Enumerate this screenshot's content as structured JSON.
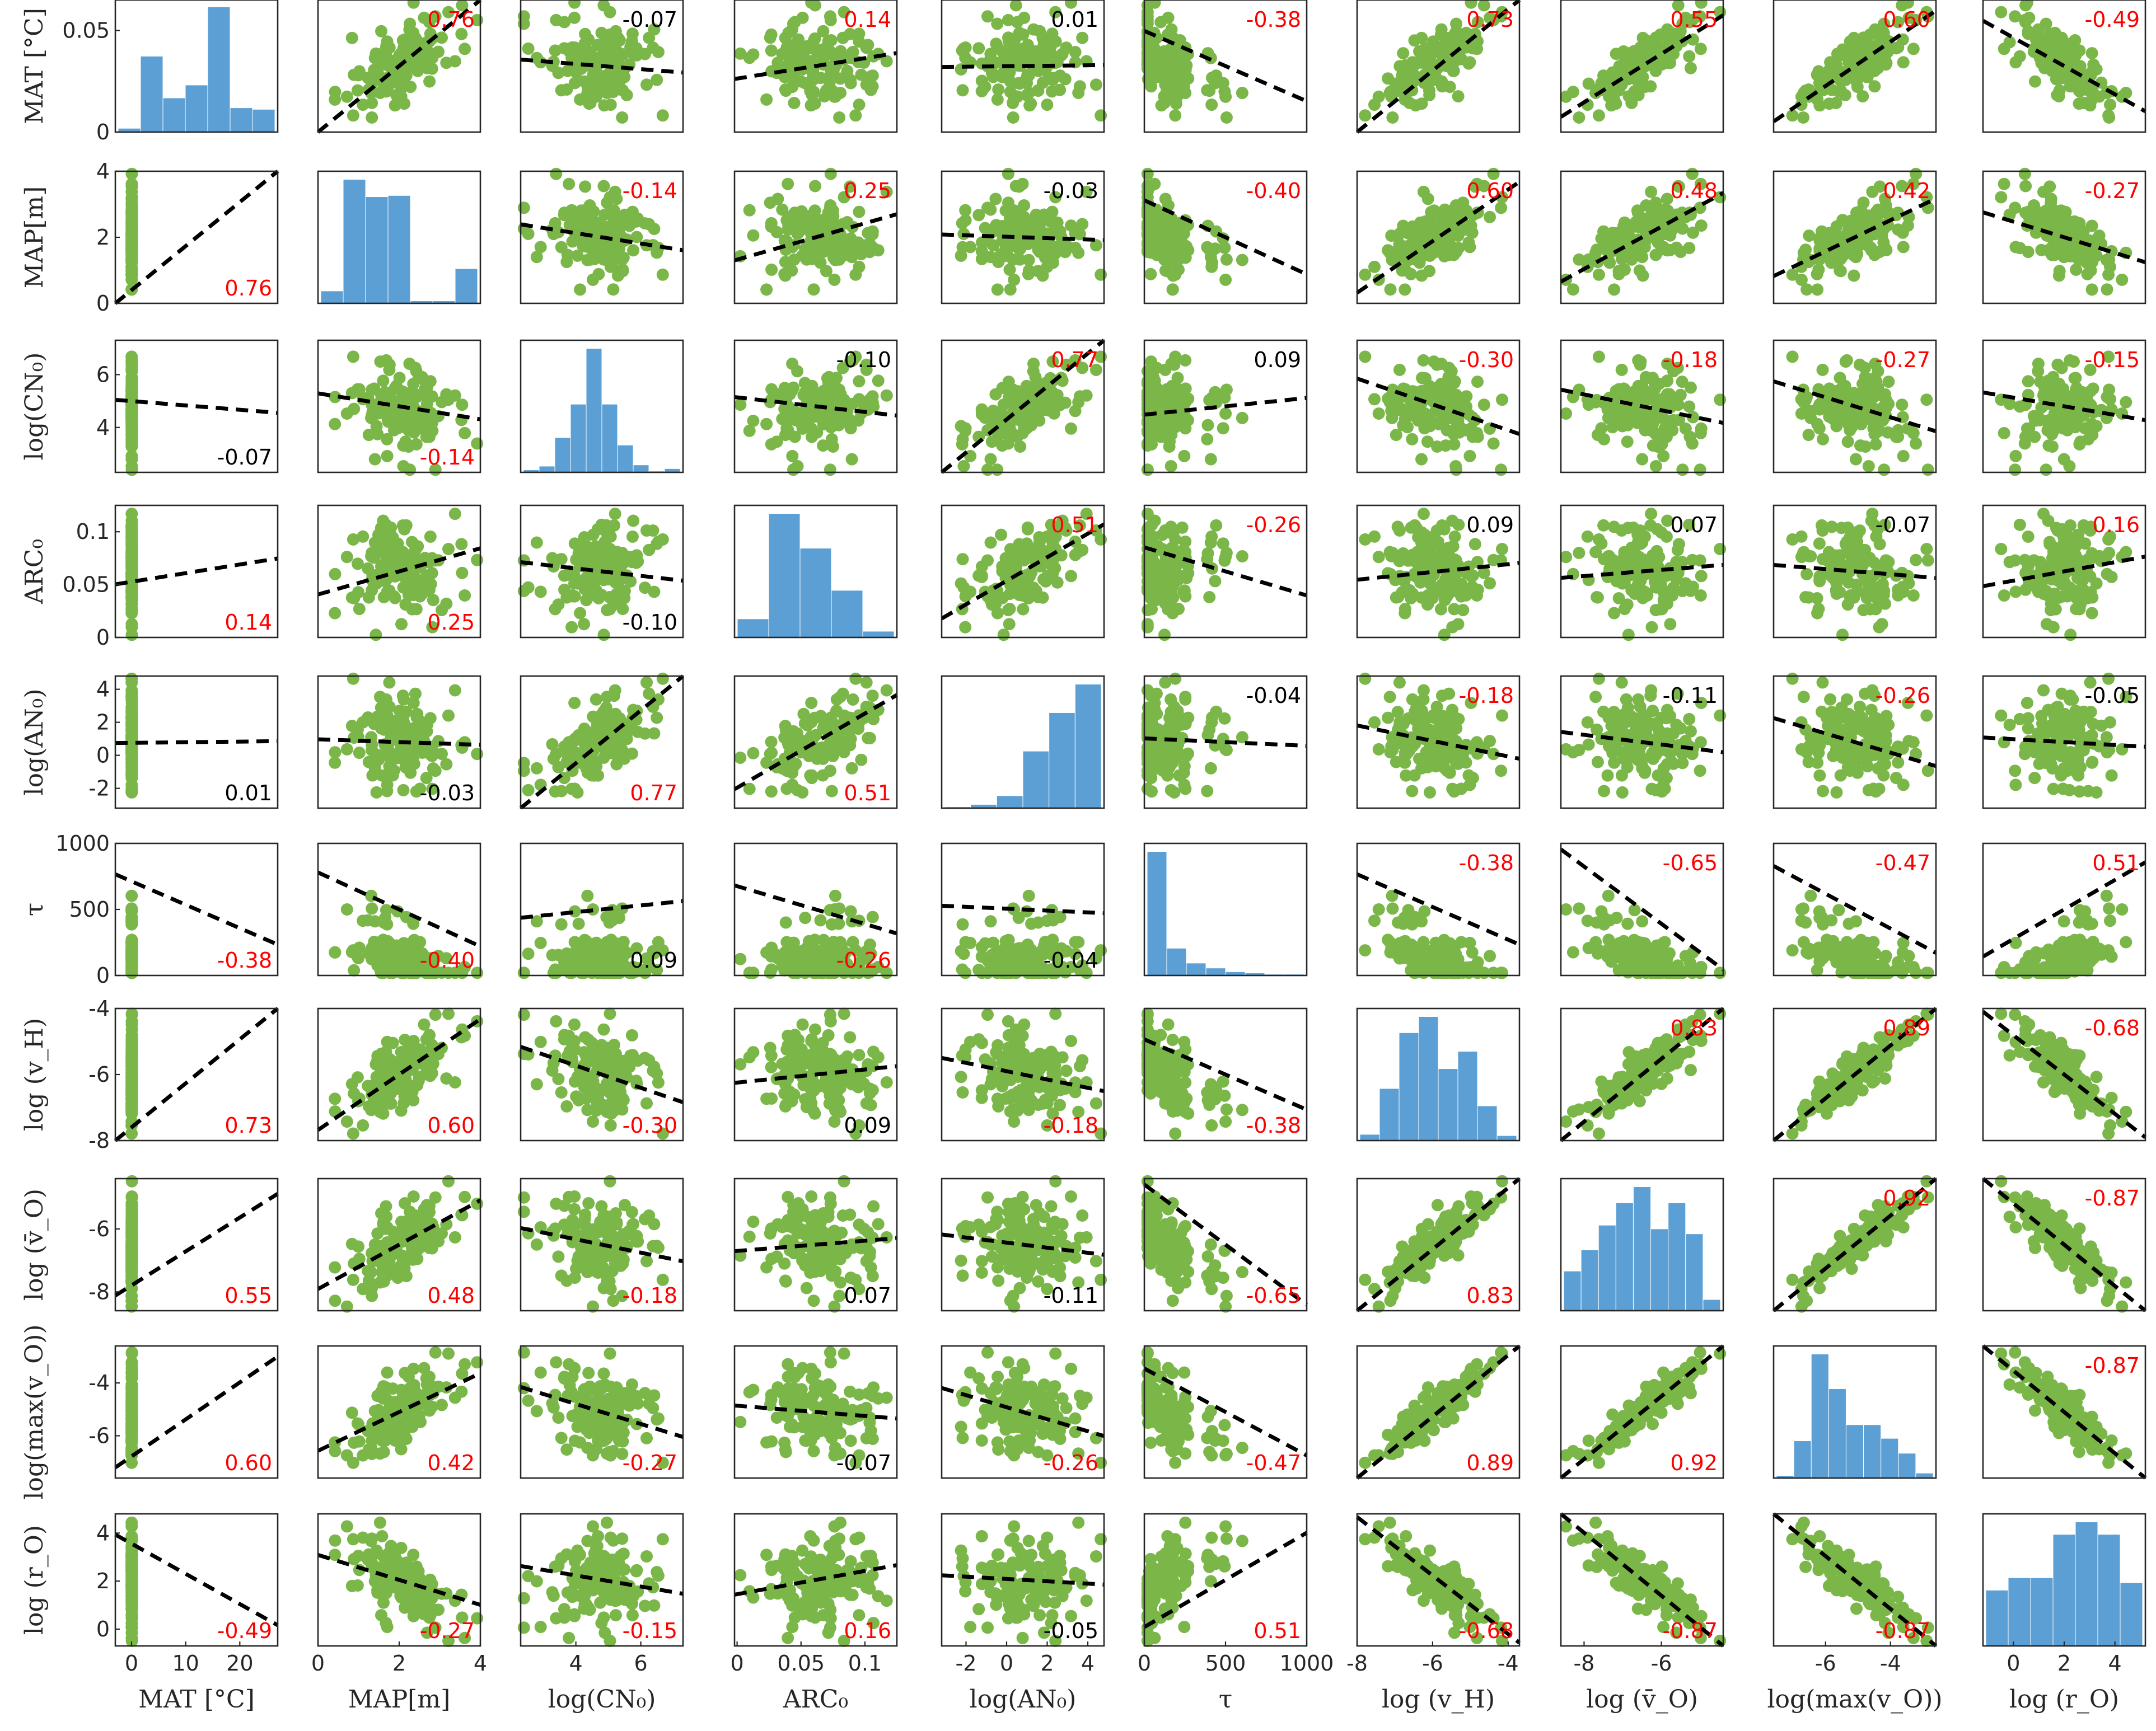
{
  "chart_data": {
    "type": "scatter-matrix",
    "variables": [
      {
        "label": "MAT [°C]",
        "ylabel": "MAT [°C]",
        "xrange": [
          -3,
          27
        ],
        "yrange": [
          0,
          0.065
        ],
        "xticks": [
          "0",
          "10",
          "20"
        ],
        "xtick_vals": [
          0,
          10,
          20
        ],
        "yticks": [
          "0",
          "0.05"
        ],
        "ytick_vals": [
          0,
          0.05
        ]
      },
      {
        "label": "MAP[m]",
        "ylabel": "MAP[m]",
        "xrange": [
          0,
          4
        ],
        "yrange": [
          0,
          4
        ],
        "xticks": [
          "0",
          "2",
          "4"
        ],
        "xtick_vals": [
          0,
          2,
          4
        ],
        "yticks": [
          "0",
          "2",
          "4"
        ],
        "ytick_vals": [
          0,
          2,
          4
        ]
      },
      {
        "label": "log(CN₀)",
        "ylabel": "log(CN₀)",
        "xrange": [
          2.3,
          7.3
        ],
        "yrange": [
          2.3,
          7.3
        ],
        "xticks": [
          "4",
          "6"
        ],
        "xtick_vals": [
          4,
          6
        ],
        "yticks": [
          "4",
          "6"
        ],
        "ytick_vals": [
          4,
          6
        ]
      },
      {
        "label": "ARC₀",
        "ylabel": "ARC₀",
        "xrange": [
          -0.002,
          0.125
        ],
        "yrange": [
          0,
          0.125
        ],
        "xticks": [
          "0",
          "0.05",
          "0.1"
        ],
        "xtick_vals": [
          0,
          0.05,
          0.1
        ],
        "yticks": [
          "0",
          "0.05",
          "0.1"
        ],
        "ytick_vals": [
          0,
          0.05,
          0.1
        ]
      },
      {
        "label": "log(AN₀)",
        "ylabel": "log(AN₀)",
        "xrange": [
          -3.2,
          4.8
        ],
        "yrange": [
          -3.2,
          4.8
        ],
        "xticks": [
          "-2",
          "0",
          "2",
          "4"
        ],
        "xtick_vals": [
          -2,
          0,
          2,
          4
        ],
        "yticks": [
          "-2",
          "0",
          "2",
          "4"
        ],
        "ytick_vals": [
          -2,
          0,
          2,
          4
        ]
      },
      {
        "label": "τ",
        "ylabel": "τ",
        "xrange": [
          0,
          1000
        ],
        "yrange": [
          0,
          1000
        ],
        "xticks": [
          "0",
          "500",
          "1000"
        ],
        "xtick_vals": [
          0,
          500,
          1000
        ],
        "yticks": [
          "0",
          "500",
          "1000"
        ],
        "ytick_vals": [
          0,
          500,
          1000
        ]
      },
      {
        "label": "log (v_H)",
        "ylabel": "log (v_H)",
        "xrange": [
          -8,
          -3.7
        ],
        "yrange": [
          -8,
          -4
        ],
        "xticks": [
          "-8",
          "-6",
          "-4"
        ],
        "xtick_vals": [
          -8,
          -6,
          -4
        ],
        "yticks": [
          "-8",
          "-6",
          "-4"
        ],
        "ytick_vals": [
          -8,
          -6,
          -4
        ]
      },
      {
        "label": "log (v̄_O)",
        "ylabel": "log (v̄_O)",
        "xrange": [
          -8.6,
          -4.4
        ],
        "yrange": [
          -8.6,
          -4.4
        ],
        "xticks": [
          "-8",
          "-6"
        ],
        "xtick_vals": [
          -8,
          -6
        ],
        "yticks": [
          "-8",
          "-6"
        ],
        "ytick_vals": [
          -8,
          -6
        ]
      },
      {
        "label": "log(max(v_O))",
        "ylabel": "log(max(v_O))",
        "xrange": [
          -7.6,
          -2.6
        ],
        "yrange": [
          -7.6,
          -2.6
        ],
        "xticks": [
          "-6",
          "-4"
        ],
        "xtick_vals": [
          -6,
          -4
        ],
        "yticks": [
          "-6",
          "-4"
        ],
        "ytick_vals": [
          -6,
          -4
        ]
      },
      {
        "label": "log (r_O)",
        "ylabel": "log (r_O)",
        "xrange": [
          -1.2,
          5.2
        ],
        "yrange": [
          -0.7,
          4.8
        ],
        "xticks": [
          "0",
          "2",
          "4"
        ],
        "xtick_vals": [
          0,
          2,
          4
        ],
        "yticks": [
          "0",
          "2",
          "4"
        ],
        "ytick_vals": [
          0,
          2,
          4
        ]
      }
    ],
    "correlations": [
      [
        null,
        0.76,
        -0.07,
        0.14,
        0.01,
        -0.38,
        0.73,
        0.55,
        0.6,
        -0.49
      ],
      [
        0.76,
        null,
        -0.14,
        0.25,
        -0.03,
        -0.4,
        0.6,
        0.48,
        0.42,
        -0.27
      ],
      [
        -0.07,
        -0.14,
        null,
        -0.1,
        0.77,
        0.09,
        -0.3,
        -0.18,
        -0.27,
        -0.15
      ],
      [
        0.14,
        0.25,
        -0.1,
        null,
        0.51,
        -0.26,
        0.09,
        0.07,
        -0.07,
        0.16
      ],
      [
        0.01,
        -0.03,
        0.77,
        0.51,
        null,
        -0.04,
        -0.18,
        -0.11,
        -0.26,
        -0.05
      ],
      [
        -0.38,
        -0.4,
        0.09,
        -0.26,
        -0.04,
        null,
        -0.38,
        -0.65,
        -0.47,
        0.51
      ],
      [
        0.73,
        0.6,
        -0.3,
        0.09,
        -0.18,
        -0.38,
        null,
        0.83,
        0.89,
        -0.68
      ],
      [
        0.55,
        0.48,
        -0.18,
        0.07,
        -0.11,
        -0.65,
        0.83,
        null,
        0.92,
        -0.87
      ],
      [
        0.6,
        0.42,
        -0.27,
        -0.07,
        -0.26,
        -0.47,
        0.89,
        0.92,
        null,
        -0.87
      ],
      [
        -0.49,
        -0.27,
        -0.15,
        0.16,
        -0.05,
        0.51,
        -0.68,
        -0.87,
        -0.87,
        null
      ]
    ],
    "corr_label_text": [
      [
        null,
        "0.76",
        "-0.07",
        "0.14",
        "0.01",
        "-0.38",
        "0.73",
        "0.55",
        "0.60",
        "-0.49"
      ],
      [
        "0.76",
        null,
        "-0.14",
        "0.25",
        "-0.03",
        "-0.40",
        "0.60",
        "0.48",
        "0.42",
        "-0.27"
      ],
      [
        "-0.07",
        "-0.14",
        null,
        "-0.10",
        "0.77",
        "0.09",
        "-0.30",
        "-0.18",
        "-0.27",
        "-0.15"
      ],
      [
        "0.14",
        "0.25",
        "-0.10",
        null,
        "0.51",
        "-0.26",
        "0.09",
        "0.07",
        "-0.07",
        "0.16"
      ],
      [
        "0.01",
        "-0.03",
        "0.77",
        "0.51",
        null,
        "-0.04",
        "-0.18",
        "-0.11",
        "-0.26",
        "-0.05"
      ],
      [
        "-0.38",
        "-0.40",
        "0.09",
        "-0.26",
        "-0.04",
        null,
        "-0.38",
        "-0.65",
        "-0.47",
        "0.51"
      ],
      [
        "0.73",
        "0.60",
        "-0.30",
        "0.09",
        "-0.18",
        "-0.38",
        null,
        "0.83",
        "0.89",
        "-0.68"
      ],
      [
        "0.55",
        "0.48",
        "-0.18",
        "0.07",
        "-0.11",
        "-0.65",
        "0.83",
        null,
        "0.92",
        "-0.87"
      ],
      [
        "0.60",
        "0.42",
        "-0.27",
        "-0.07",
        "-0.26",
        "-0.47",
        "0.89",
        "0.92",
        null,
        "-0.87"
      ],
      [
        "-0.49",
        "-0.27",
        "-0.15",
        "0.16",
        "-0.05",
        "0.51",
        "-0.68",
        "-0.87",
        "-0.87",
        null
      ]
    ],
    "histograms": [
      [
        0.05,
        1.0,
        0.45,
        0.62,
        1.65,
        0.32,
        0.3
      ],
      [
        0.1,
        1.0,
        0.86,
        0.87,
        0.02,
        0.02,
        0.28
      ],
      [
        0.02,
        0.05,
        0.28,
        0.55,
        1.0,
        0.55,
        0.22,
        0.06,
        0.01,
        0.03
      ],
      [
        0.15,
        1.0,
        0.72,
        0.38,
        0.05
      ],
      [
        0.01,
        0.03,
        0.1,
        0.46,
        0.77,
        1.0
      ],
      [
        1.0,
        0.22,
        0.1,
        0.06,
        0.03,
        0.02,
        0.01,
        0.01
      ],
      [
        0.05,
        0.42,
        0.87,
        1.0,
        0.58,
        0.72,
        0.28,
        0.04
      ],
      [
        0.32,
        0.49,
        0.69,
        0.87,
        1.0,
        0.66,
        0.87,
        0.62,
        0.09
      ],
      [
        0.02,
        0.3,
        1.0,
        0.72,
        0.43,
        0.43,
        0.32,
        0.2,
        0.04
      ],
      [
        0.45,
        0.55,
        0.55,
        0.9,
        1.0,
        0.9,
        0.51
      ]
    ],
    "scatter_color": "#7ab648",
    "hist_color": "#5b9fd4",
    "corr_color_significant": "#ff0000",
    "corr_color_nonsignificant": "#000000",
    "grid": false
  }
}
